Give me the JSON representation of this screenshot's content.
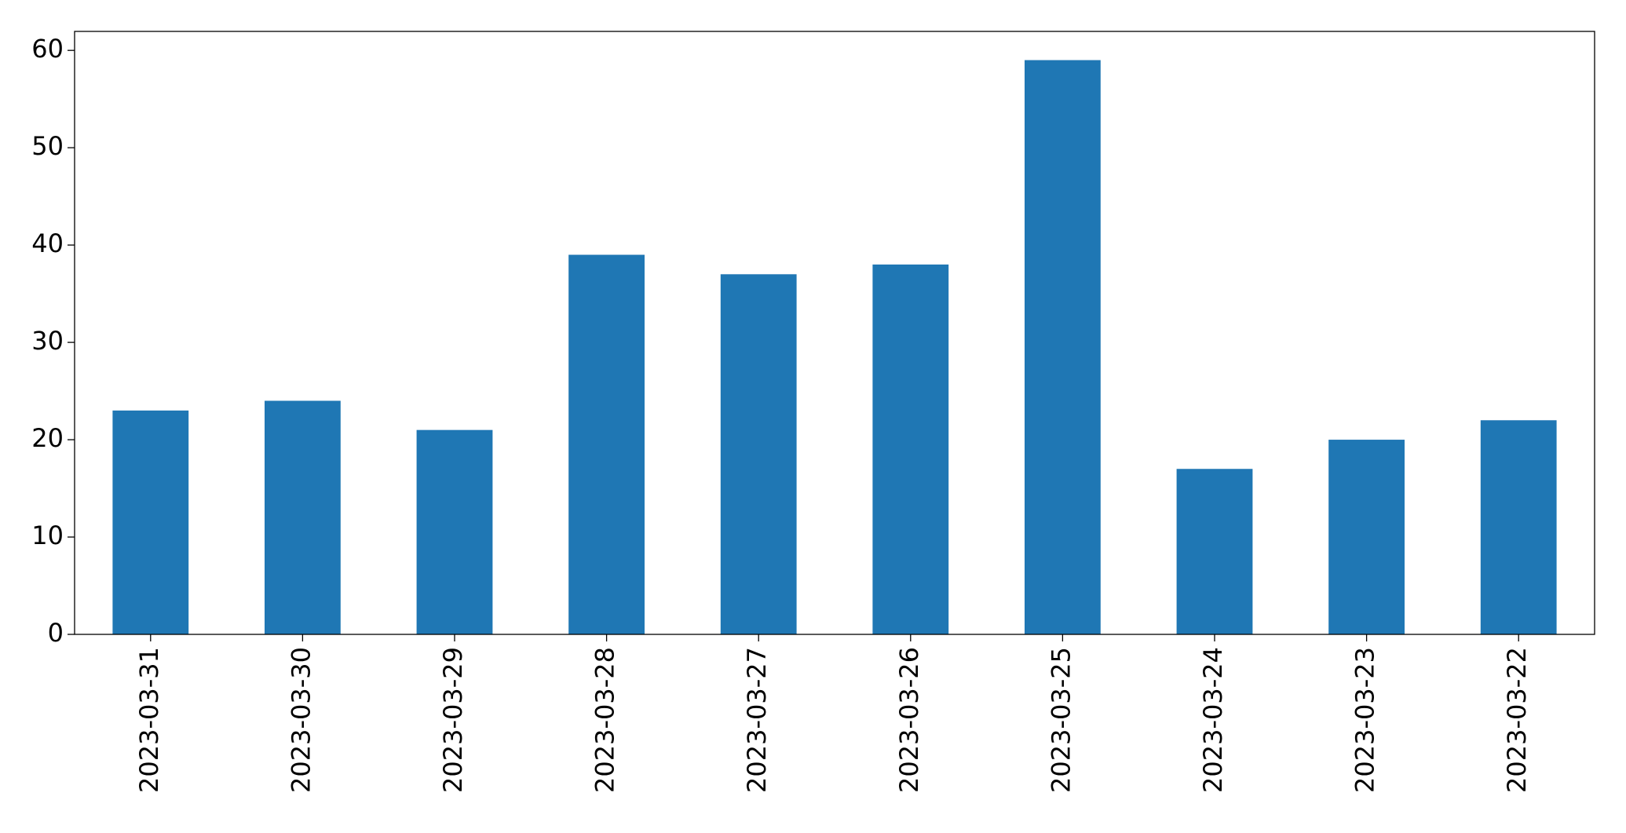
{
  "chart_data": {
    "type": "bar",
    "categories": [
      "2023-03-31",
      "2023-03-30",
      "2023-03-29",
      "2023-03-28",
      "2023-03-27",
      "2023-03-26",
      "2023-03-25",
      "2023-03-24",
      "2023-03-23",
      "2023-03-22"
    ],
    "values": [
      23,
      24,
      21,
      39,
      37,
      38,
      59,
      17,
      20,
      22
    ],
    "color": "#1f77b4",
    "ylim": [
      0,
      61.95
    ],
    "yticks": [
      0,
      10,
      20,
      30,
      40,
      50,
      60
    ],
    "grid": false
  }
}
